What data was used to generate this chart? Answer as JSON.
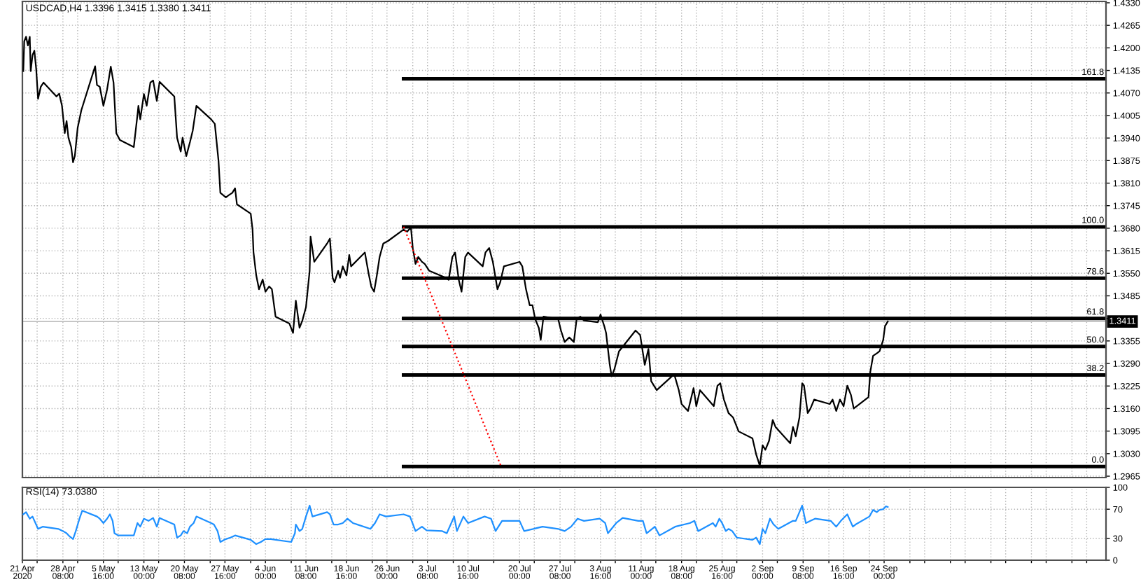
{
  "chart_data": [
    {
      "type": "line",
      "title": "USDCAD,H4 1.3396 1.3415 1.3380 1.3411",
      "tick_labels": "y",
      "grid": true,
      "xlim": [
        "2020-04-21T00:00",
        "2020-11-03T04:00"
      ],
      "xticks": [
        {
          "value": "2020-04-21T00:00",
          "label": null
        },
        {
          "value": "2020-04-23T16:00",
          "label": null
        },
        {
          "value": "2020-04-28T08:00",
          "label": null
        },
        {
          "value": "2020-05-01T00:00",
          "label": null
        },
        {
          "value": "2020-05-05T16:00",
          "label": null
        },
        {
          "value": "2020-05-08T08:00",
          "label": null
        },
        {
          "value": "2020-05-13T00:00",
          "label": null
        },
        {
          "value": "2020-05-15T16:00",
          "label": null
        },
        {
          "value": "2020-05-20T08:00",
          "label": null
        },
        {
          "value": "2020-05-25T00:00",
          "label": null
        },
        {
          "value": "2020-05-27T16:00",
          "label": null
        },
        {
          "value": "2020-06-01T08:00",
          "label": null
        },
        {
          "value": "2020-06-04T00:00",
          "label": null
        },
        {
          "value": "2020-06-08T16:00",
          "label": null
        },
        {
          "value": "2020-06-11T08:00",
          "label": null
        },
        {
          "value": "2020-06-16T00:00",
          "label": null
        },
        {
          "value": "2020-06-18T16:00",
          "label": null
        },
        {
          "value": "2020-06-23T08:00",
          "label": null
        },
        {
          "value": "2020-06-26T00:00",
          "label": null
        },
        {
          "value": "2020-06-30T16:00",
          "label": null
        },
        {
          "value": "2020-07-03T08:00",
          "label": null
        },
        {
          "value": "2020-07-08T00:00",
          "label": null
        },
        {
          "value": "2020-07-10T16:00",
          "label": null
        },
        {
          "value": "2020-07-15T08:00",
          "label": null
        },
        {
          "value": "2020-07-20T00:00",
          "label": null
        },
        {
          "value": "2020-07-22T16:00",
          "label": null
        },
        {
          "value": "2020-07-27T08:00",
          "label": null
        },
        {
          "value": "2020-07-30T00:00",
          "label": null
        },
        {
          "value": "2020-08-03T16:00",
          "label": null
        },
        {
          "value": "2020-08-06T08:00",
          "label": null
        },
        {
          "value": "2020-08-11T00:00",
          "label": null
        },
        {
          "value": "2020-08-13T16:00",
          "label": null
        },
        {
          "value": "2020-08-18T08:00",
          "label": null
        },
        {
          "value": "2020-08-21T00:00",
          "label": null
        },
        {
          "value": "2020-08-25T16:00",
          "label": null
        },
        {
          "value": "2020-08-28T08:00",
          "label": null
        },
        {
          "value": "2020-09-02T00:00",
          "label": null
        },
        {
          "value": "2020-09-04T16:00",
          "label": null
        },
        {
          "value": "2020-09-09T08:00",
          "label": null
        },
        {
          "value": "2020-09-14T00:00",
          "label": null
        },
        {
          "value": "2020-09-16T16:00",
          "label": null
        },
        {
          "value": "2020-09-21T08:00",
          "label": null
        },
        {
          "value": "2020-09-24T00:00",
          "label": null
        },
        {
          "value": "2020-09-28T16:00",
          "label": null
        },
        {
          "value": "2020-10-01T08:00",
          "label": null
        },
        {
          "value": "2020-10-06T00:00",
          "label": null
        },
        {
          "value": "2020-10-08T16:00",
          "label": null
        },
        {
          "value": "2020-10-13T08:00",
          "label": null
        },
        {
          "value": "2020-10-16T00:00",
          "label": null
        },
        {
          "value": "2020-10-20T16:00",
          "label": null
        },
        {
          "value": "2020-10-23T08:00",
          "label": null
        },
        {
          "value": "2020-10-28T00:00",
          "label": null
        },
        {
          "value": "2020-10-30T16:00",
          "label": null
        }
      ],
      "ylim": [
        1.2961,
        1.4334
      ],
      "yticks": [
        1.2965,
        {
          "value": 1.303,
          "label": "1.3030"
        },
        1.3095,
        {
          "value": 1.316,
          "label": "1.3160"
        },
        1.3225,
        {
          "value": 1.329,
          "label": "1.3290"
        },
        1.3355,
        {
          "value": 1.342,
          "label": null
        },
        1.3485,
        {
          "value": 1.355,
          "label": "1.3550"
        },
        1.3615,
        {
          "value": 1.368,
          "label": "1.3680"
        },
        1.3745,
        {
          "value": 1.381,
          "label": "1.3810"
        },
        1.3875,
        {
          "value": 1.394,
          "label": "1.3940"
        },
        1.4005,
        {
          "value": 1.407,
          "label": "1.4070"
        },
        1.4135,
        {
          "value": 1.42,
          "label": "1.4200"
        },
        1.4265,
        {
          "value": 1.433,
          "label": "1.4330"
        }
      ],
      "ref_lines": [
        {
          "axis": "y",
          "value": 1.3411,
          "label": "1.3411",
          "color": "#c0c0c0"
        }
      ],
      "annotations": [
        {
          "text": "161.8",
          "x": "2020-11-03T04:00",
          "y": 1.4111
        },
        {
          "text": "100.0",
          "x": "2020-11-03T04:00",
          "y": 1.3684
        },
        {
          "text": "78.6",
          "x": "2020-11-03T04:00",
          "y": 1.3536
        },
        {
          "text": "61.8",
          "x": "2020-11-03T04:00",
          "y": 1.342
        },
        {
          "text": "50.0",
          "x": "2020-11-03T04:00",
          "y": 1.3339
        },
        {
          "text": "38.2",
          "x": "2020-11-03T04:00",
          "y": 1.3257
        },
        {
          "text": "0.0",
          "x": "2020-11-03T04:00",
          "y": 1.2993
        }
      ],
      "series": [
        {
          "color": "#000000",
          "x": [
            "2020-04-21T04:00",
            "2020-04-21T08:00",
            "2020-04-21T16:00",
            "2020-04-22T00:00",
            "2020-04-22T08:00",
            "2020-04-22T12:00",
            "2020-04-22T20:00",
            "2020-04-23T04:00",
            "2020-04-23T12:00",
            "2020-04-23T20:00",
            "2020-04-24T08:00",
            "2020-04-24T20:00",
            "2020-04-27T04:00",
            "2020-04-27T16:00",
            "2020-04-28T04:00",
            "2020-04-28T16:00",
            "2020-04-29T00:00",
            "2020-04-29T08:00",
            "2020-04-29T20:00",
            "2020-04-30T04:00",
            "2020-04-30T12:00",
            "2020-05-01T00:00",
            "2020-05-01T16:00",
            "2020-05-04T04:00",
            "2020-05-04T12:00",
            "2020-05-05T00:00",
            "2020-05-05T16:00",
            "2020-05-06T08:00",
            "2020-05-07T00:00",
            "2020-05-07T12:00",
            "2020-05-08T00:00",
            "2020-05-08T16:00",
            "2020-05-11T04:00",
            "2020-05-11T20:00",
            "2020-05-12T00:00",
            "2020-05-12T08:00",
            "2020-05-13T00:00",
            "2020-05-13T12:00",
            "2020-05-14T04:00",
            "2020-05-14T16:00",
            "2020-05-15T08:00",
            "2020-05-15T20:00",
            "2020-05-18T12:00",
            "2020-05-19T00:00",
            "2020-05-19T16:00",
            "2020-05-20T00:00",
            "2020-05-20T16:00",
            "2020-05-21T08:00",
            "2020-05-21T20:00",
            "2020-05-22T12:00",
            "2020-05-25T04:00",
            "2020-05-25T20:00",
            "2020-05-26T12:00",
            "2020-05-26T20:00",
            "2020-05-27T20:00",
            "2020-05-28T08:00",
            "2020-05-29T00:00",
            "2020-05-29T12:00",
            "2020-05-29T20:00",
            "2020-06-01T08:00",
            "2020-06-01T16:00",
            "2020-06-01T20:00",
            "2020-06-02T08:00",
            "2020-06-02T20:00",
            "2020-06-03T12:00",
            "2020-06-04T00:00",
            "2020-06-04T16:00",
            "2020-06-05T04:00",
            "2020-06-05T20:00",
            "2020-06-08T08:00",
            "2020-06-09T00:00",
            "2020-06-09T12:00",
            "2020-06-10T04:00",
            "2020-06-10T16:00",
            "2020-06-11T08:00",
            "2020-06-12T00:00",
            "2020-06-12T04:00",
            "2020-06-12T20:00",
            "2020-06-15T04:00",
            "2020-06-15T16:00",
            "2020-06-16T04:00",
            "2020-06-16T12:00",
            "2020-06-17T04:00",
            "2020-06-17T12:00",
            "2020-06-18T00:00",
            "2020-06-18T16:00",
            "2020-06-19T04:00",
            "2020-06-19T12:00",
            "2020-06-22T00:00",
            "2020-06-22T16:00",
            "2020-06-23T04:00",
            "2020-06-23T16:00",
            "2020-06-24T04:00",
            "2020-06-24T16:00",
            "2020-06-25T08:00",
            "2020-06-26T04:00",
            "2020-06-29T00:00",
            "2020-06-29T16:00",
            "2020-06-30T08:00",
            "2020-06-30T16:00",
            "2020-07-01T04:00",
            "2020-07-01T16:00",
            "2020-07-02T08:00",
            "2020-07-02T20:00",
            "2020-07-03T16:00",
            "2020-07-06T16:00",
            "2020-07-07T04:00",
            "2020-07-07T20:00",
            "2020-07-08T08:00",
            "2020-07-09T00:00",
            "2020-07-09T12:00",
            "2020-07-10T04:00",
            "2020-07-10T16:00",
            "2020-07-13T08:00",
            "2020-07-13T20:00",
            "2020-07-14T12:00",
            "2020-07-15T04:00",
            "2020-07-16T00:00",
            "2020-07-16T12:00",
            "2020-07-17T04:00",
            "2020-07-20T00:00",
            "2020-07-20T12:00",
            "2020-07-21T04:00",
            "2020-07-21T20:00",
            "2020-07-22T08:00",
            "2020-07-22T20:00",
            "2020-07-23T12:00",
            "2020-07-23T20:00",
            "2020-07-24T08:00",
            "2020-07-27T00:00",
            "2020-07-27T12:00",
            "2020-07-28T04:00",
            "2020-07-29T00:00",
            "2020-07-29T20:00",
            "2020-07-30T08:00",
            "2020-07-31T00:00",
            "2020-07-31T16:00",
            "2020-08-03T04:00",
            "2020-08-03T16:00",
            "2020-08-04T08:00",
            "2020-08-04T16:00",
            "2020-08-05T08:00",
            "2020-08-05T16:00",
            "2020-08-06T04:00",
            "2020-08-07T00:00",
            "2020-08-10T00:00",
            "2020-08-10T20:00",
            "2020-08-11T16:00",
            "2020-08-12T08:00",
            "2020-08-12T20:00",
            "2020-08-13T20:00",
            "2020-08-17T00:00",
            "2020-08-17T20:00",
            "2020-08-18T08:00",
            "2020-08-19T12:00",
            "2020-08-20T12:00",
            "2020-08-21T00:00",
            "2020-08-21T16:00",
            "2020-08-24T04:00",
            "2020-08-24T20:00",
            "2020-08-25T08:00",
            "2020-08-26T00:00",
            "2020-08-26T20:00",
            "2020-08-27T16:00",
            "2020-08-28T16:00",
            "2020-08-31T04:00",
            "2020-08-31T20:00",
            "2020-09-01T12:00",
            "2020-09-02T00:00",
            "2020-09-02T12:00",
            "2020-09-03T04:00",
            "2020-09-03T20:00",
            "2020-09-04T08:00",
            "2020-09-07T00:00",
            "2020-09-07T12:00",
            "2020-09-08T00:00",
            "2020-09-08T16:00",
            "2020-09-09T04:00",
            "2020-09-09T12:00",
            "2020-09-10T04:00",
            "2020-09-10T16:00",
            "2020-09-11T08:00",
            "2020-09-14T04:00",
            "2020-09-14T16:00",
            "2020-09-15T08:00",
            "2020-09-16T00:00",
            "2020-09-16T16:00",
            "2020-09-17T08:00",
            "2020-09-18T00:00",
            "2020-09-18T12:00",
            "2020-09-21T04:00",
            "2020-09-21T12:00",
            "2020-09-22T00:00",
            "2020-09-22T16:00",
            "2020-09-23T04:00",
            "2020-09-23T20:00",
            "2020-09-24T04:00",
            "2020-09-24T16:00"
          ],
          "values": [
            1.4133,
            1.4219,
            1.4232,
            1.4207,
            1.4232,
            1.4133,
            1.4179,
            1.4192,
            1.4139,
            1.4053,
            1.4088,
            1.41,
            1.406,
            1.4068,
            1.4033,
            1.3954,
            1.3989,
            1.3941,
            1.3914,
            1.387,
            1.3889,
            1.3969,
            1.402,
            1.4147,
            1.4093,
            1.4088,
            1.4033,
            1.408,
            1.4146,
            1.41,
            1.3954,
            1.3934,
            1.3914,
            1.4007,
            1.4033,
            1.3994,
            1.4067,
            1.4033,
            1.41,
            1.4106,
            1.4047,
            1.4102,
            1.406,
            1.3941,
            1.3901,
            1.3941,
            1.3888,
            1.3928,
            1.3961,
            1.4033,
            1.3994,
            1.3981,
            1.3875,
            1.3782,
            1.3769,
            1.3775,
            1.3782,
            1.3795,
            1.3749,
            1.3722,
            1.3676,
            1.3611,
            1.3544,
            1.3504,
            1.3532,
            1.3497,
            1.3512,
            1.3504,
            1.3425,
            1.3405,
            1.3378,
            1.3471,
            1.3393,
            1.3413,
            1.3452,
            1.3557,
            1.3656,
            1.3583,
            1.3636,
            1.365,
            1.3537,
            1.3524,
            1.3557,
            1.3537,
            1.357,
            1.3544,
            1.3603,
            1.357,
            1.361,
            1.355,
            1.3511,
            1.3497,
            1.3544,
            1.3597,
            1.3636,
            1.3643,
            1.3676,
            1.367,
            1.3683,
            1.3623,
            1.3577,
            1.3597,
            1.3583,
            1.3577,
            1.3557,
            1.3537,
            1.3531,
            1.3597,
            1.361,
            1.3531,
            1.3497,
            1.3597,
            1.361,
            1.357,
            1.361,
            1.3623,
            1.3583,
            1.3504,
            1.3524,
            1.357,
            1.3583,
            1.357,
            1.3504,
            1.3458,
            1.3458,
            1.3418,
            1.3392,
            1.3358,
            1.3425,
            1.3418,
            1.3385,
            1.3352,
            1.3365,
            1.3352,
            1.3418,
            1.3425,
            1.3414,
            1.3409,
            1.3431,
            1.3398,
            1.3378,
            1.3286,
            1.3253,
            1.3273,
            1.3325,
            1.3385,
            1.3372,
            1.3286,
            1.3332,
            1.3239,
            1.3213,
            1.3259,
            1.3213,
            1.3173,
            1.3153,
            1.3219,
            1.3167,
            1.3213,
            1.3167,
            1.3226,
            1.3233,
            1.3186,
            1.3147,
            1.3134,
            1.3094,
            1.3074,
            1.3028,
            1.2995,
            1.3054,
            1.3041,
            1.3067,
            1.3127,
            1.3107,
            1.306,
            1.3107,
            1.308,
            1.3134,
            1.3233,
            1.3226,
            1.3147,
            1.316,
            1.3186,
            1.3173,
            1.3186,
            1.3153,
            1.3186,
            1.3167,
            1.3226,
            1.3199,
            1.316,
            1.3193,
            1.3266,
            1.3312,
            1.3319,
            1.3325,
            1.3358,
            1.3398,
            1.3411
          ]
        },
        {
          "color": "#000000",
          "x": [
            "2020-06-29T00:00",
            "2020-11-03T04:00"
          ],
          "values": [
            1.4111,
            1.4111
          ]
        },
        {
          "color": "#000000",
          "x": [
            "2020-06-29T00:00",
            "2020-11-03T04:00"
          ],
          "values": [
            1.3684,
            1.3684
          ]
        },
        {
          "color": "#000000",
          "x": [
            "2020-06-29T00:00",
            "2020-11-03T04:00"
          ],
          "values": [
            1.3536,
            1.3536
          ]
        },
        {
          "color": "#000000",
          "x": [
            "2020-06-29T00:00",
            "2020-11-03T04:00"
          ],
          "values": [
            1.342,
            1.342
          ]
        },
        {
          "color": "#000000",
          "x": [
            "2020-06-29T00:00",
            "2020-11-03T04:00"
          ],
          "values": [
            1.3339,
            1.3339
          ]
        },
        {
          "color": "#000000",
          "x": [
            "2020-06-29T00:00",
            "2020-11-03T04:00"
          ],
          "values": [
            1.3257,
            1.3257
          ]
        },
        {
          "color": "#000000",
          "x": [
            "2020-06-29T00:00",
            "2020-11-03T04:00"
          ],
          "values": [
            1.2993,
            1.2993
          ]
        },
        {
          "color": "#ff0000",
          "line_style": "dotted",
          "x": [
            "2020-06-29T00:00",
            "2020-07-16T16:00"
          ],
          "values": [
            1.3684,
            1.2993
          ]
        }
      ]
    },
    {
      "type": "line",
      "title": "RSI(14) 73.0380",
      "grid": true,
      "xlim": [
        "2020-04-21T00:00",
        "2020-11-03T04:00"
      ],
      "xticks": [
        {
          "value": "2020-04-21T00:00",
          "label": "21 Apr 2020"
        },
        {
          "value": "2020-04-23T16:00",
          "label": null
        },
        {
          "value": "2020-04-28T08:00",
          "label": "28 Apr 08:00"
        },
        {
          "value": "2020-05-01T00:00",
          "label": null
        },
        {
          "value": "2020-05-05T16:00",
          "label": "5 May 16:00"
        },
        {
          "value": "2020-05-08T08:00",
          "label": null
        },
        {
          "value": "2020-05-13T00:00",
          "label": "13 May 00:00"
        },
        {
          "value": "2020-05-15T16:00",
          "label": null
        },
        {
          "value": "2020-05-20T08:00",
          "label": "20 May 08:00"
        },
        {
          "value": "2020-05-25T00:00",
          "label": null
        },
        {
          "value": "2020-05-27T16:00",
          "label": "27 May 16:00"
        },
        {
          "value": "2020-06-01T08:00",
          "label": null
        },
        {
          "value": "2020-06-04T00:00",
          "label": "4 Jun 00:00"
        },
        {
          "value": "2020-06-08T16:00",
          "label": null
        },
        {
          "value": "2020-06-11T08:00",
          "label": "11 Jun 08:00"
        },
        {
          "value": "2020-06-16T00:00",
          "label": null
        },
        {
          "value": "2020-06-18T16:00",
          "label": "18 Jun 16:00"
        },
        {
          "value": "2020-06-23T08:00",
          "label": null
        },
        {
          "value": "2020-06-26T00:00",
          "label": "26 Jun 00:00"
        },
        {
          "value": "2020-06-30T16:00",
          "label": null
        },
        {
          "value": "2020-07-03T08:00",
          "label": "3 Jul 08:00"
        },
        {
          "value": "2020-07-08T00:00",
          "label": null
        },
        {
          "value": "2020-07-10T16:00",
          "label": "10 Jul 16:00"
        },
        {
          "value": "2020-07-15T08:00",
          "label": null
        },
        {
          "value": "2020-07-20T00:00",
          "label": "20 Jul 00:00"
        },
        {
          "value": "2020-07-22T16:00",
          "label": null
        },
        {
          "value": "2020-07-27T08:00",
          "label": "27 Jul 08:00"
        },
        {
          "value": "2020-07-30T00:00",
          "label": null
        },
        {
          "value": "2020-08-03T16:00",
          "label": "3 Aug 16:00"
        },
        {
          "value": "2020-08-06T08:00",
          "label": null
        },
        {
          "value": "2020-08-11T00:00",
          "label": "11 Aug 00:00"
        },
        {
          "value": "2020-08-13T16:00",
          "label": null
        },
        {
          "value": "2020-08-18T08:00",
          "label": "18 Aug 08:00"
        },
        {
          "value": "2020-08-21T00:00",
          "label": null
        },
        {
          "value": "2020-08-25T16:00",
          "label": "25 Aug 16:00"
        },
        {
          "value": "2020-08-28T08:00",
          "label": null
        },
        {
          "value": "2020-09-02T00:00",
          "label": "2 Sep 00:00"
        },
        {
          "value": "2020-09-04T16:00",
          "label": null
        },
        {
          "value": "2020-09-09T08:00",
          "label": "9 Sep 08:00"
        },
        {
          "value": "2020-09-14T00:00",
          "label": null
        },
        {
          "value": "2020-09-16T16:00",
          "label": "16 Sep 16:00"
        },
        {
          "value": "2020-09-21T08:00",
          "label": null
        },
        {
          "value": "2020-09-24T00:00",
          "label": "24 Sep 00:00"
        },
        {
          "value": "2020-09-28T16:00",
          "label": null
        },
        {
          "value": "2020-10-01T08:00",
          "label": null
        },
        {
          "value": "2020-10-06T00:00",
          "label": null
        },
        {
          "value": "2020-10-08T16:00",
          "label": null
        },
        {
          "value": "2020-10-13T08:00",
          "label": null
        },
        {
          "value": "2020-10-16T00:00",
          "label": null
        },
        {
          "value": "2020-10-20T16:00",
          "label": null
        },
        {
          "value": "2020-10-23T08:00",
          "label": null
        },
        {
          "value": "2020-10-28T00:00",
          "label": null
        },
        {
          "value": "2020-10-30T16:00",
          "label": null
        }
      ],
      "ylim": [
        0,
        100
      ],
      "yticks": [
        0,
        30,
        70,
        100
      ],
      "series": [
        {
          "color": "#1e90ff",
          "x": [
            "2020-04-21T04:00",
            "2020-04-21T16:00",
            "2020-04-22T08:00",
            "2020-04-22T20:00",
            "2020-04-23T20:00",
            "2020-04-24T16:00",
            "2020-04-27T12:00",
            "2020-04-28T08:00",
            "2020-04-29T00:00",
            "2020-04-29T12:00",
            "2020-04-30T04:00",
            "2020-04-30T16:00",
            "2020-05-01T08:00",
            "2020-05-01T20:00",
            "2020-05-04T12:00",
            "2020-05-05T00:00",
            "2020-05-05T16:00",
            "2020-05-06T08:00",
            "2020-05-06T20:00",
            "2020-05-07T08:00",
            "2020-05-07T16:00",
            "2020-05-08T08:00",
            "2020-05-11T04:00",
            "2020-05-11T20:00",
            "2020-05-12T08:00",
            "2020-05-13T00:00",
            "2020-05-13T20:00",
            "2020-05-14T16:00",
            "2020-05-15T08:00",
            "2020-05-15T20:00",
            "2020-05-18T12:00",
            "2020-05-19T00:00",
            "2020-05-19T16:00",
            "2020-05-20T04:00",
            "2020-05-20T20:00",
            "2020-05-21T08:00",
            "2020-05-22T00:00",
            "2020-05-22T12:00",
            "2020-05-25T04:00",
            "2020-05-25T16:00",
            "2020-05-26T08:00",
            "2020-05-26T20:00",
            "2020-05-27T20:00",
            "2020-05-28T16:00",
            "2020-05-29T12:00",
            "2020-06-01T08:00",
            "2020-06-02T08:00",
            "2020-06-03T04:00",
            "2020-06-04T00:00",
            "2020-06-05T00:00",
            "2020-06-05T20:00",
            "2020-06-08T16:00",
            "2020-06-09T08:00",
            "2020-06-09T12:00",
            "2020-06-10T04:00",
            "2020-06-10T16:00",
            "2020-06-11T08:00",
            "2020-06-12T00:00",
            "2020-06-12T12:00",
            "2020-06-15T04:00",
            "2020-06-15T16:00",
            "2020-06-16T08:00",
            "2020-06-17T04:00",
            "2020-06-18T00:00",
            "2020-06-18T20:00",
            "2020-06-19T20:00",
            "2020-06-23T00:00",
            "2020-06-23T20:00",
            "2020-06-24T16:00",
            "2020-06-25T20:00",
            "2020-06-29T00:00",
            "2020-06-30T04:00",
            "2020-07-01T04:00",
            "2020-07-02T08:00",
            "2020-07-03T04:00",
            "2020-07-06T00:00",
            "2020-07-06T20:00",
            "2020-07-08T04:00",
            "2020-07-08T16:00",
            "2020-07-09T20:00",
            "2020-07-10T16:00",
            "2020-07-13T16:00",
            "2020-07-14T20:00",
            "2020-07-15T16:00",
            "2020-07-16T20:00",
            "2020-07-20T00:00",
            "2020-07-20T20:00",
            "2020-07-24T04:00",
            "2020-07-27T00:00",
            "2020-07-28T04:00",
            "2020-07-29T08:00",
            "2020-07-30T12:00",
            "2020-07-31T16:00",
            "2020-08-03T12:00",
            "2020-08-04T12:00",
            "2020-08-05T00:00",
            "2020-08-06T12:00",
            "2020-08-07T16:00",
            "2020-08-10T12:00",
            "2020-08-11T08:00",
            "2020-08-12T00:00",
            "2020-08-13T12:00",
            "2020-08-14T08:00",
            "2020-08-17T04:00",
            "2020-08-19T20:00",
            "2020-08-20T16:00",
            "2020-08-21T08:00",
            "2020-08-24T00:00",
            "2020-08-24T12:00",
            "2020-08-25T04:00",
            "2020-08-25T16:00",
            "2020-08-26T08:00",
            "2020-08-26T20:00",
            "2020-08-27T12:00",
            "2020-08-28T08:00",
            "2020-08-31T04:00",
            "2020-08-31T20:00",
            "2020-09-01T12:00",
            "2020-09-02T00:00",
            "2020-09-02T12:00",
            "2020-09-03T08:00",
            "2020-09-04T00:00",
            "2020-09-04T20:00",
            "2020-09-07T12:00",
            "2020-09-08T00:00",
            "2020-09-08T16:00",
            "2020-09-09T04:00",
            "2020-09-09T20:00",
            "2020-09-10T16:00",
            "2020-09-11T12:00",
            "2020-09-14T08:00",
            "2020-09-15T08:00",
            "2020-09-16T04:00",
            "2020-09-17T08:00",
            "2020-09-18T08:00",
            "2020-09-18T20:00",
            "2020-09-21T08:00",
            "2020-09-22T00:00",
            "2020-09-22T16:00",
            "2020-09-23T04:00",
            "2020-09-23T20:00",
            "2020-09-24T08:00",
            "2020-09-24T16:00"
          ],
          "values": [
            63,
            66,
            57,
            60,
            43,
            46,
            43,
            40,
            37,
            33,
            29,
            40,
            57,
            68,
            60,
            57,
            51,
            57,
            63,
            54,
            37,
            34,
            34,
            51,
            46,
            57,
            54,
            58,
            46,
            58,
            49,
            31,
            34,
            40,
            37,
            46,
            51,
            60,
            51,
            49,
            40,
            25,
            29,
            31,
            34,
            28,
            22,
            25,
            29,
            29,
            28,
            25,
            37,
            49,
            40,
            43,
            60,
            75,
            60,
            66,
            63,
            49,
            49,
            51,
            57,
            51,
            43,
            51,
            63,
            60,
            63,
            60,
            40,
            46,
            41,
            40,
            37,
            60,
            40,
            60,
            51,
            60,
            57,
            40,
            54,
            54,
            40,
            46,
            43,
            40,
            46,
            57,
            54,
            57,
            51,
            37,
            51,
            58,
            54,
            54,
            37,
            46,
            34,
            46,
            51,
            54,
            40,
            51,
            46,
            57,
            51,
            40,
            43,
            40,
            31,
            28,
            31,
            22,
            43,
            37,
            57,
            49,
            43,
            54,
            54,
            66,
            75,
            51,
            54,
            57,
            54,
            46,
            54,
            63,
            46,
            49,
            60,
            69,
            66,
            69,
            70,
            74,
            73
          ]
        }
      ]
    }
  ]
}
